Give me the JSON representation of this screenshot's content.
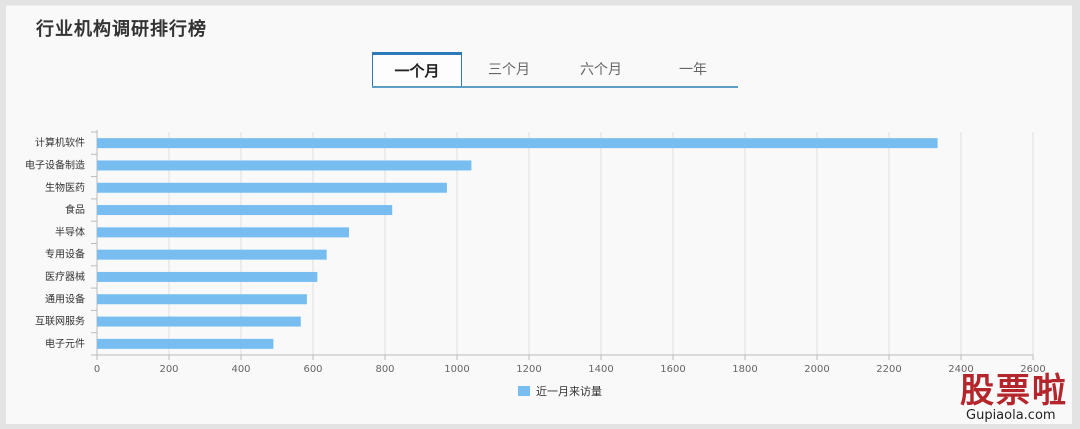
{
  "page": {
    "title": "行业机构调研排行榜",
    "tabs": [
      {
        "label": "一个月",
        "active": true
      },
      {
        "label": "三个月",
        "active": false
      },
      {
        "label": "六个月",
        "active": false
      },
      {
        "label": "一年",
        "active": false
      }
    ]
  },
  "chart_data": {
    "type": "bar",
    "orientation": "horizontal",
    "categories": [
      "计算机软件",
      "电子设备制造",
      "生物医药",
      "食品",
      "半导体",
      "专用设备",
      "医疗器械",
      "通用设备",
      "互联网服务",
      "电子元件"
    ],
    "series": [
      {
        "name": "近一月来访量",
        "values": [
          2335,
          1040,
          972,
          820,
          700,
          638,
          612,
          583,
          566,
          490
        ],
        "color": "#77bdf0"
      }
    ],
    "xticks": [
      "0",
      "200",
      "400",
      "600",
      "800",
      "1000",
      "1200",
      "1400",
      "1600",
      "1800",
      "2000",
      "2200",
      "2400",
      "2600"
    ],
    "xlim": [
      0,
      2600
    ],
    "grid": true,
    "legend": "bottom-center"
  },
  "watermark": {
    "text": "股票啦",
    "url": "Gupiaola.com"
  }
}
